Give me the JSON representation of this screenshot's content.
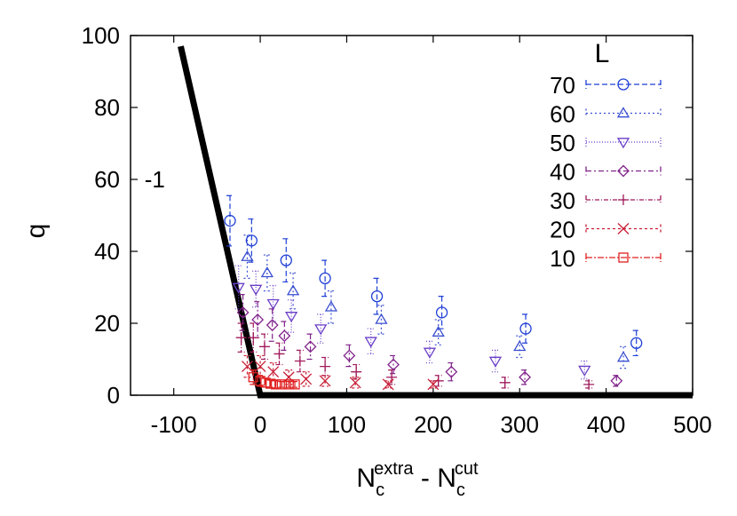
{
  "chart_data": {
    "type": "scatter",
    "xlim": [
      -150,
      500
    ],
    "ylim": [
      0,
      100
    ],
    "xticks": [
      "-100",
      "0",
      "100",
      "200",
      "300",
      "400",
      "500"
    ],
    "yticks": [
      "0",
      "20",
      "40",
      "60",
      "80",
      "100"
    ],
    "ylabel": "q",
    "xlabel": {
      "a": "N",
      "a_sub": "c",
      "a_sup": "extra",
      "sep": " - ",
      "b": "N",
      "b_sub": "c",
      "b_sup": "cut"
    },
    "legend": {
      "title": "L",
      "placement": "top-right"
    },
    "annotation": {
      "text": "-1",
      "x": -122,
      "y": 60
    },
    "reference_line": {
      "points": [
        [
          -92,
          97
        ],
        [
          0,
          0
        ],
        [
          500,
          0
        ]
      ],
      "color": "#000000"
    },
    "series": [
      {
        "name": "70",
        "marker": "circle",
        "color": "#1f3fd6",
        "points": [
          [
            -35,
            48.5,
            7
          ],
          [
            -10,
            43,
            6
          ],
          [
            30,
            37.5,
            6
          ],
          [
            75,
            32.5,
            5
          ],
          [
            135,
            27.5,
            5
          ],
          [
            210,
            23,
            4.5
          ],
          [
            307,
            18.5,
            4
          ],
          [
            435,
            14.5,
            3.5
          ]
        ]
      },
      {
        "name": "60",
        "marker": "triangle-up",
        "color": "#3a4fd0",
        "points": [
          [
            -15,
            38.5,
            6
          ],
          [
            8,
            34,
            5
          ],
          [
            38,
            29,
            5
          ],
          [
            82,
            24.5,
            4.5
          ],
          [
            140,
            21,
            4
          ],
          [
            206,
            17.5,
            3.5
          ],
          [
            300,
            13.5,
            3
          ],
          [
            420,
            10.5,
            3
          ]
        ]
      },
      {
        "name": "50",
        "marker": "triangle-down",
        "color": "#6a3fc8",
        "points": [
          [
            -25,
            30,
            6
          ],
          [
            -5,
            29.5,
            5
          ],
          [
            15,
            25.5,
            5
          ],
          [
            36,
            22,
            4.5
          ],
          [
            70,
            18.5,
            4
          ],
          [
            128,
            15,
            3.5
          ],
          [
            196,
            12,
            3
          ],
          [
            272,
            9.5,
            3
          ],
          [
            375,
            7,
            2.5
          ]
        ]
      },
      {
        "name": "40",
        "marker": "diamond",
        "color": "#80228a",
        "points": [
          [
            -20,
            23,
            5
          ],
          [
            -3,
            21,
            5
          ],
          [
            14,
            19.5,
            4.5
          ],
          [
            28,
            16.5,
            4
          ],
          [
            58,
            13.5,
            3.5
          ],
          [
            103,
            11,
            3
          ],
          [
            154,
            8.5,
            2.5
          ],
          [
            221,
            6.5,
            2.5
          ],
          [
            306,
            5,
            2
          ],
          [
            412,
            4,
            1.5
          ]
        ]
      },
      {
        "name": "30",
        "marker": "plus",
        "color": "#a01a5c",
        "points": [
          [
            -22,
            16,
            4
          ],
          [
            -8,
            16,
            4
          ],
          [
            5,
            13.5,
            3.5
          ],
          [
            22,
            11.5,
            3
          ],
          [
            46,
            9.5,
            3
          ],
          [
            75,
            8,
            2.5
          ],
          [
            111,
            6.5,
            2
          ],
          [
            152,
            5,
            2
          ],
          [
            206,
            4,
            1.5
          ],
          [
            283,
            3.5,
            1.5
          ],
          [
            380,
            3,
            1
          ]
        ]
      },
      {
        "name": "20",
        "marker": "x",
        "color": "#c81e36",
        "points": [
          [
            -15,
            8,
            3
          ],
          [
            0,
            8,
            3
          ],
          [
            15,
            6.5,
            2.5
          ],
          [
            33,
            5,
            2
          ],
          [
            53,
            4.5,
            2
          ],
          [
            75,
            4,
            1.5
          ],
          [
            110,
            3.5,
            1.5
          ],
          [
            148,
            3,
            1
          ],
          [
            200,
            3,
            1
          ]
        ]
      },
      {
        "name": "10",
        "marker": "square",
        "color": "#e02020",
        "points": [
          [
            -8,
            5,
            2
          ],
          [
            0,
            4,
            1.5
          ],
          [
            6,
            3.5,
            1.2
          ],
          [
            12,
            3.2,
            1
          ],
          [
            18,
            3,
            1
          ],
          [
            25,
            3,
            0.8
          ],
          [
            33,
            3,
            0.8
          ],
          [
            40,
            3,
            0.8
          ]
        ]
      }
    ]
  }
}
